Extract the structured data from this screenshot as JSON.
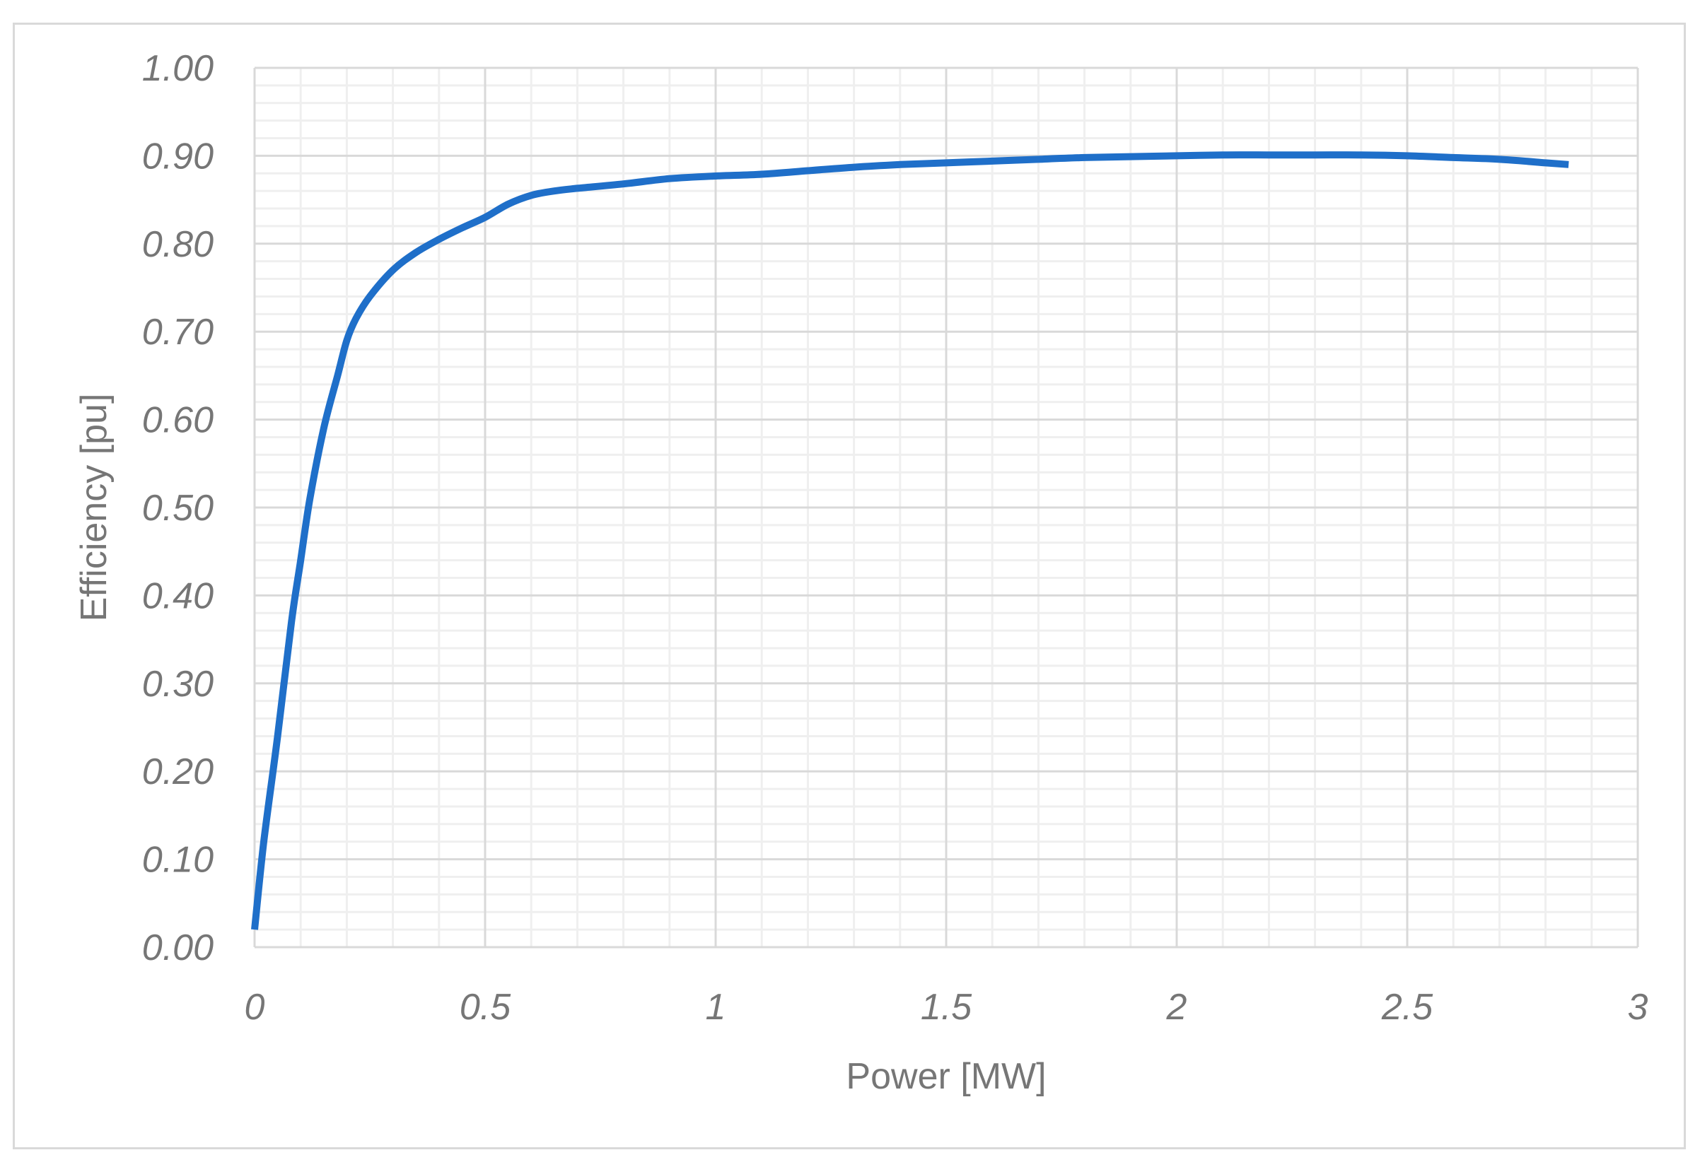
{
  "chart_data": {
    "type": "line",
    "title": "",
    "xlabel": "Power [MW]",
    "ylabel": "Efficiency [pu]",
    "xlim": [
      0,
      3
    ],
    "ylim": [
      0,
      1
    ],
    "x_ticks": [
      "0",
      "0.5",
      "1",
      "1.5",
      "2",
      "2.5",
      "3"
    ],
    "y_ticks": [
      "0.00",
      "0.10",
      "0.20",
      "0.30",
      "0.40",
      "0.50",
      "0.60",
      "0.70",
      "0.80",
      "0.90",
      "1.00"
    ],
    "grid": true,
    "legend": "none",
    "colors": {
      "line": "#1F6FC9",
      "major_grid": "#d9d9d9",
      "minor_grid": "#efefef",
      "text": "#767676"
    },
    "series": [
      {
        "x": [
          0,
          0.02,
          0.05,
          0.08,
          0.1,
          0.12,
          0.15,
          0.18,
          0.2,
          0.22,
          0.25,
          0.3,
          0.35,
          0.4,
          0.45,
          0.5,
          0.55,
          0.6,
          0.65,
          0.7,
          0.8,
          0.9,
          1.0,
          1.1,
          1.2,
          1.3,
          1.4,
          1.5,
          1.6,
          1.7,
          1.8,
          1.9,
          2.0,
          2.1,
          2.2,
          2.3,
          2.4,
          2.5,
          2.6,
          2.7,
          2.8,
          2.85
        ],
        "y": [
          0.02,
          0.12,
          0.24,
          0.37,
          0.44,
          0.51,
          0.59,
          0.65,
          0.69,
          0.715,
          0.74,
          0.77,
          0.79,
          0.805,
          0.818,
          0.83,
          0.845,
          0.855,
          0.86,
          0.863,
          0.868,
          0.874,
          0.877,
          0.879,
          0.883,
          0.887,
          0.89,
          0.892,
          0.894,
          0.896,
          0.898,
          0.899,
          0.9,
          0.901,
          0.901,
          0.901,
          0.901,
          0.9,
          0.898,
          0.896,
          0.892,
          0.89
        ]
      }
    ]
  }
}
